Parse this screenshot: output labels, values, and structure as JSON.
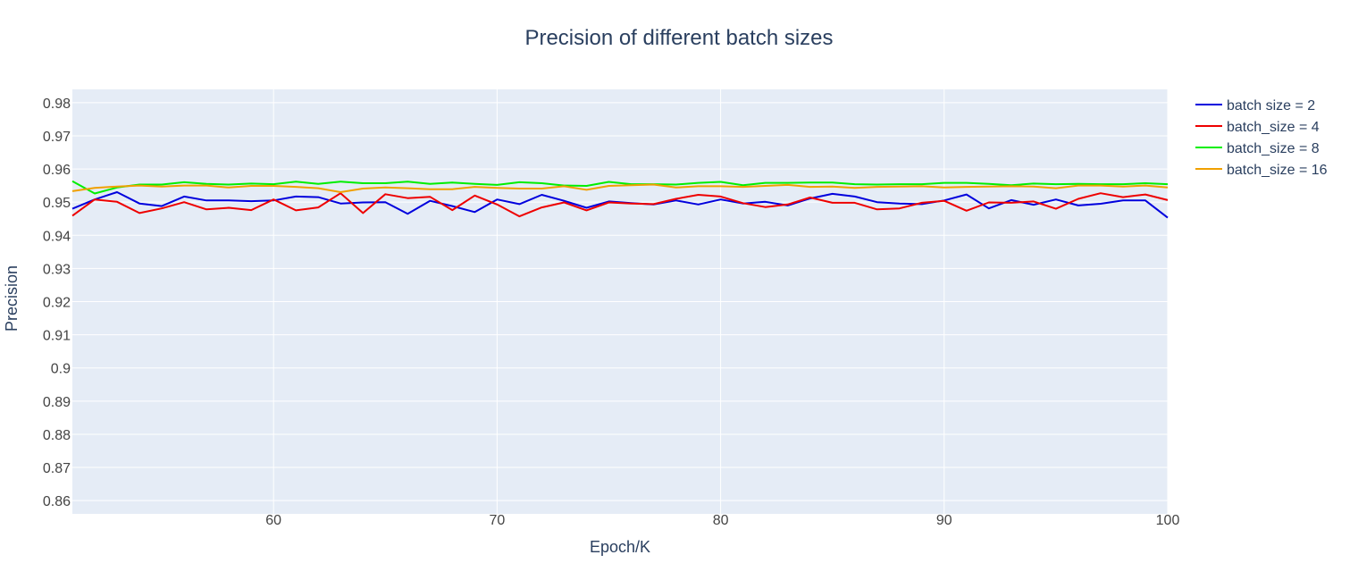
{
  "chart_data": {
    "type": "line",
    "title": "Precision of different batch sizes",
    "xlabel": "Epoch/K",
    "ylabel": "Precision",
    "xlim": [
      51,
      100
    ],
    "ylim": [
      0.856,
      0.984
    ],
    "x_ticks": [
      60,
      70,
      80,
      90,
      100
    ],
    "x_tick_labels": [
      "60",
      "70",
      "80",
      "90",
      "100"
    ],
    "y_ticks": [
      0.86,
      0.87,
      0.88,
      0.89,
      0.9,
      0.91,
      0.92,
      0.93,
      0.94,
      0.95,
      0.96,
      0.97,
      0.98
    ],
    "y_tick_labels": [
      "0.86",
      "0.87",
      "0.88",
      "0.89",
      "0.9",
      "0.91",
      "0.92",
      "0.93",
      "0.94",
      "0.95",
      "0.96",
      "0.97",
      "0.98"
    ],
    "grid": true,
    "legend_position": "top-right",
    "plot_background": "#e5ecf6",
    "grid_color": "#ffffff",
    "x": [
      51,
      52,
      53,
      54,
      55,
      56,
      57,
      58,
      59,
      60,
      61,
      62,
      63,
      64,
      65,
      66,
      67,
      68,
      69,
      70,
      71,
      72,
      73,
      74,
      75,
      76,
      77,
      78,
      79,
      80,
      81,
      82,
      83,
      84,
      85,
      86,
      87,
      88,
      89,
      90,
      91,
      92,
      93,
      94,
      95,
      96,
      97,
      98,
      99,
      100
    ],
    "series": [
      {
        "name": "batch size = 2",
        "color": "#0000dd",
        "values": [
          0.948,
          0.9508,
          0.953,
          0.9496,
          0.9488,
          0.9517,
          0.9505,
          0.9505,
          0.9503,
          0.9505,
          0.9517,
          0.9515,
          0.9496,
          0.9499,
          0.95,
          0.9465,
          0.9504,
          0.9488,
          0.947,
          0.9508,
          0.9494,
          0.9522,
          0.9504,
          0.9483,
          0.9502,
          0.9497,
          0.9493,
          0.9505,
          0.9493,
          0.9508,
          0.9496,
          0.9501,
          0.949,
          0.9511,
          0.9525,
          0.9517,
          0.95,
          0.9496,
          0.9494,
          0.9505,
          0.9523,
          0.9481,
          0.9506,
          0.9492,
          0.9508,
          0.949,
          0.9495,
          0.9505,
          0.9505,
          0.9453
        ]
      },
      {
        "name": "batch_size = 4",
        "color": "#ee0000",
        "values": [
          0.9459,
          0.9508,
          0.9501,
          0.9467,
          0.9481,
          0.95,
          0.9478,
          0.9483,
          0.9476,
          0.9508,
          0.9475,
          0.9484,
          0.9527,
          0.9467,
          0.9524,
          0.9512,
          0.9516,
          0.9476,
          0.952,
          0.9493,
          0.9457,
          0.9484,
          0.9499,
          0.9475,
          0.9499,
          0.9496,
          0.9494,
          0.951,
          0.9522,
          0.9517,
          0.9497,
          0.9485,
          0.9493,
          0.9514,
          0.9498,
          0.9498,
          0.9478,
          0.9481,
          0.9498,
          0.9504,
          0.9474,
          0.9499,
          0.9498,
          0.9502,
          0.948,
          0.951,
          0.9527,
          0.9515,
          0.9523,
          0.9506
        ]
      },
      {
        "name": "batch_size = 8",
        "color": "#00ee00",
        "values": [
          0.9563,
          0.9526,
          0.9544,
          0.9553,
          0.9553,
          0.956,
          0.9555,
          0.9553,
          0.9556,
          0.9554,
          0.9562,
          0.9555,
          0.9562,
          0.9557,
          0.9557,
          0.9562,
          0.9555,
          0.9559,
          0.9555,
          0.9552,
          0.956,
          0.9557,
          0.955,
          0.9549,
          0.9561,
          0.9554,
          0.9554,
          0.9553,
          0.9558,
          0.9561,
          0.9551,
          0.9558,
          0.9558,
          0.9559,
          0.9559,
          0.9554,
          0.9553,
          0.9554,
          0.9554,
          0.9558,
          0.9558,
          0.9555,
          0.9551,
          0.9556,
          0.9554,
          0.9555,
          0.9554,
          0.9554,
          0.9557,
          0.9554
        ]
      },
      {
        "name": "batch_size = 16",
        "color": "#f0a000",
        "values": [
          0.9533,
          0.9543,
          0.9547,
          0.955,
          0.9547,
          0.955,
          0.955,
          0.9544,
          0.9549,
          0.9549,
          0.9546,
          0.9542,
          0.953,
          0.9541,
          0.9544,
          0.9542,
          0.9539,
          0.9539,
          0.9546,
          0.9543,
          0.9541,
          0.9541,
          0.9548,
          0.9537,
          0.9549,
          0.9551,
          0.9553,
          0.9544,
          0.9548,
          0.9548,
          0.9546,
          0.9549,
          0.9552,
          0.9546,
          0.9547,
          0.9543,
          0.9546,
          0.9547,
          0.9548,
          0.9544,
          0.9546,
          0.9547,
          0.9548,
          0.9547,
          0.9542,
          0.955,
          0.955,
          0.9547,
          0.955,
          0.9544
        ]
      }
    ]
  }
}
